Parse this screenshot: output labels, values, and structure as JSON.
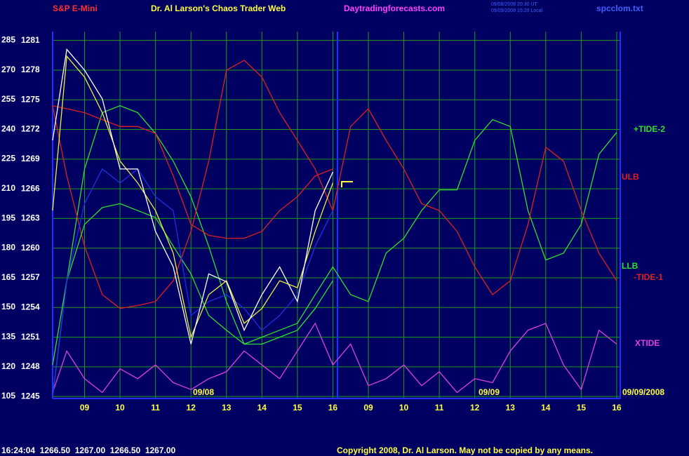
{
  "chart_data": {
    "type": "line",
    "title": "Dr. Al Larson's Chaos Trader Web",
    "symbol": "S&P E-Mini",
    "site": "Daytradingforecasts.com",
    "timestamps": [
      "09/08/2008 20:30 UT",
      "09/09/2008 15:20 Local"
    ],
    "file": "spcclom.txt",
    "quote": "16:24:04  1266.50  1267.00  1266.50  1267.00",
    "copyright": "Copyright 2008, Dr. Al Larson. May not be copied by any means.",
    "annotations": [
      "09/08",
      "09/09",
      "09/09/2008"
    ],
    "x": [
      0.1,
      0.5,
      1,
      1.5,
      2,
      2.5,
      3,
      3.5,
      4,
      4.5,
      5,
      5.5,
      6,
      6.5,
      7,
      7.5,
      8,
      8.5,
      9,
      9.5,
      10,
      10.5,
      11,
      11.5,
      12,
      12.5,
      13,
      13.5,
      14,
      14.5,
      15,
      15.5,
      16
    ],
    "xlim": [
      0.1,
      16.1
    ],
    "xticks": [
      {
        "value": 1,
        "label": "09"
      },
      {
        "value": 2,
        "label": "10"
      },
      {
        "value": 3,
        "label": "11"
      },
      {
        "value": 4,
        "label": "12"
      },
      {
        "value": 5,
        "label": "13"
      },
      {
        "value": 6,
        "label": "14"
      },
      {
        "value": 7,
        "label": "15"
      },
      {
        "value": 8,
        "label": "16"
      },
      {
        "value": 9,
        "label": "09"
      },
      {
        "value": 10,
        "label": "10"
      },
      {
        "value": 11,
        "label": "11"
      },
      {
        "value": 12,
        "label": "12"
      },
      {
        "value": 13,
        "label": "13"
      },
      {
        "value": 14,
        "label": "14"
      },
      {
        "value": 15,
        "label": "15"
      },
      {
        "value": 16,
        "label": "16"
      }
    ],
    "ylim": [
      1244.8,
      1281.9
    ],
    "yticks": [
      1245,
      1248,
      1251,
      1254,
      1257,
      1260,
      1263,
      1266,
      1269,
      1272,
      1275,
      1278,
      1281
    ],
    "y2lim": [
      103.9,
      289.4
    ],
    "y2ticks": [
      105,
      120,
      135,
      150,
      165,
      180,
      195,
      210,
      225,
      240,
      255,
      270,
      285
    ],
    "grid": true,
    "series": [
      {
        "name": "XTIDE",
        "color": "#e040e0",
        "values": [
          1245.4,
          1249.6,
          1246.8,
          1245.4,
          1247.8,
          1246.8,
          1248.2,
          1246.4,
          1245.7,
          1246.8,
          1247.5,
          1249.6,
          1248.2,
          1246.8,
          1249.6,
          1252.4,
          1248.2,
          1250.3,
          1246.1,
          1246.8,
          1248.2,
          1246.1,
          1247.5,
          1245.4,
          1246.8,
          1246.4,
          1249.6,
          1251.7,
          1252.4,
          1248.2,
          1245.7,
          1251.7,
          1250.3
        ]
      },
      {
        "name": "+TIDE-2",
        "color": "#30e030",
        "values": [
          1245.0,
          1256.7,
          1268.0,
          1273.7,
          1274.4,
          1273.7,
          1271.6,
          1268.8,
          1265.2,
          1260.2,
          1254.6,
          1250.3,
          1251.0,
          1251.7,
          1252.4,
          1255.3,
          1258.1,
          1255.3,
          1254.6,
          1259.5,
          1261.0,
          1263.8,
          1265.9,
          1265.9,
          1270.9,
          1273.0,
          1272.3,
          1263.8,
          1258.8,
          1259.5,
          1262.4,
          1269.5,
          1271.7
        ]
      },
      {
        "name": "-TIDE-1",
        "color": "#e02020",
        "values": [
          1274.4,
          1267.3,
          1260.2,
          1255.3,
          1253.9,
          1254.2,
          1254.6,
          1256.7,
          1261.7,
          1268.8,
          1278.0,
          1279.0,
          1277.3,
          1273.7,
          1270.9,
          1268.0,
          1263.8,
          1272.3,
          1274.1,
          1270.9,
          1268.0,
          1264.5,
          1263.8,
          1261.7,
          1258.1,
          1255.3,
          1256.7,
          1262.4,
          1270.2,
          1268.8,
          1263.8,
          1259.5,
          1256.7
        ]
      },
      {
        "name": "ULB",
        "color": "#e02020",
        "values": [
          1274.4,
          1274.1,
          1273.7,
          1273.0,
          1272.3,
          1272.3,
          1271.6,
          1267.3,
          1262.4,
          1261.3,
          1261.0,
          1261.0,
          1261.7,
          1263.8,
          1265.2,
          1267.3,
          1268.0,
          null,
          null,
          null,
          null,
          null,
          null,
          null,
          null,
          null,
          null,
          null,
          null,
          null,
          null,
          null,
          null
        ]
      },
      {
        "name": "LLB",
        "color": "#30e030",
        "values": [
          1248.2,
          1256.7,
          1262.4,
          1264.1,
          1264.5,
          1263.8,
          1263.1,
          1260.2,
          1257.4,
          1253.2,
          1251.7,
          1250.3,
          1250.3,
          1251.0,
          1251.7,
          1253.9,
          1256.7,
          null,
          null,
          null,
          null,
          null,
          null,
          null,
          null,
          null,
          null,
          null,
          null,
          null,
          null,
          null,
          null
        ]
      },
      {
        "color": "#2030e0",
        "values": [
          1245.0,
          1256.7,
          1264.5,
          1268.0,
          1266.6,
          1268.0,
          1265.2,
          1263.8,
          1253.2,
          1254.6,
          1255.3,
          1253.9,
          1251.7,
          1253.2,
          1255.3,
          1260.2,
          1263.8,
          null,
          null,
          null,
          null,
          null,
          null,
          null,
          null,
          null,
          null,
          null,
          null,
          null,
          null,
          null,
          null
        ]
      },
      {
        "color": "#f0f040",
        "values": [
          1263.8,
          1279.4,
          1277.3,
          1273.7,
          1268.8,
          1266.6,
          1263.8,
          1259.5,
          1251.0,
          1255.3,
          1256.7,
          1252.4,
          1253.9,
          1256.7,
          1256.0,
          1261.7,
          1266.6,
          null,
          null,
          null,
          null,
          null,
          null,
          null,
          null,
          null,
          null,
          null,
          null,
          null,
          null,
          null,
          null
        ]
      },
      {
        "color": "#ffffff",
        "values": [
          1270.9,
          1280.1,
          1278.0,
          1275.1,
          1268.0,
          1268.0,
          1261.7,
          1258.1,
          1250.3,
          1257.4,
          1256.6,
          1251.7,
          1255.3,
          1258.1,
          1254.6,
          1263.8,
          1267.7,
          null,
          null,
          null,
          null,
          null,
          null,
          null,
          null,
          null,
          null,
          null,
          null,
          null,
          null,
          null,
          null
        ]
      }
    ]
  }
}
